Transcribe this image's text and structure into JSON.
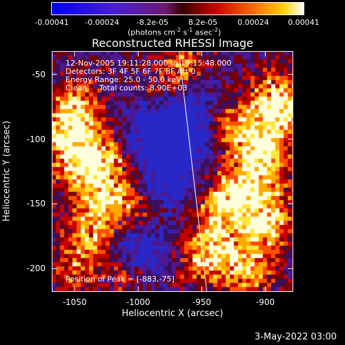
{
  "colorbar": {
    "tick_labels": [
      "-0.00041",
      "-0.00024",
      "-8.2e-05",
      "8.2e-05",
      "0.00024",
      "0.00041"
    ],
    "units_prefix": "(photons cm",
    "units_exp1": "-2",
    "units_mid1": " s",
    "units_exp2": "-1",
    "units_mid2": " asec",
    "units_exp3": "-2",
    "units_suffix": ")",
    "range": [
      -0.00041,
      0.00041
    ]
  },
  "title": "Reconstructed RHESSI Image",
  "info_lines": [
    "12-Nov-2005 19:11:28.000 to 19:15:48.000",
    "Detectors: 3F 4F 5F 6F 7F 8F Att 0",
    "Energy Range: 25.0 - 50.0 keV",
    "Clean     Total counts: 8.90E+03"
  ],
  "peak_text": "Position of Peak = [-883,-75]",
  "axes": {
    "xlabel": "Heliocentric X (arcsec)",
    "ylabel": "Heliocentric Y (arcsec)",
    "x_ticks": [
      "-1050",
      "-1000",
      "-950",
      "-900"
    ],
    "y_ticks": [
      "-50",
      "-100",
      "-150",
      "-200"
    ],
    "x_range": [
      -1068,
      -878
    ],
    "y_range": [
      -32,
      -218
    ]
  },
  "limb_line": {
    "x_start": -968,
    "y_start": -32,
    "x_end": -946,
    "y_end": -218
  },
  "datestamp": "3-May-2022 03:00",
  "colors": {
    "background": "#000000",
    "text": "#ffffff",
    "limb": "#ffffff"
  }
}
